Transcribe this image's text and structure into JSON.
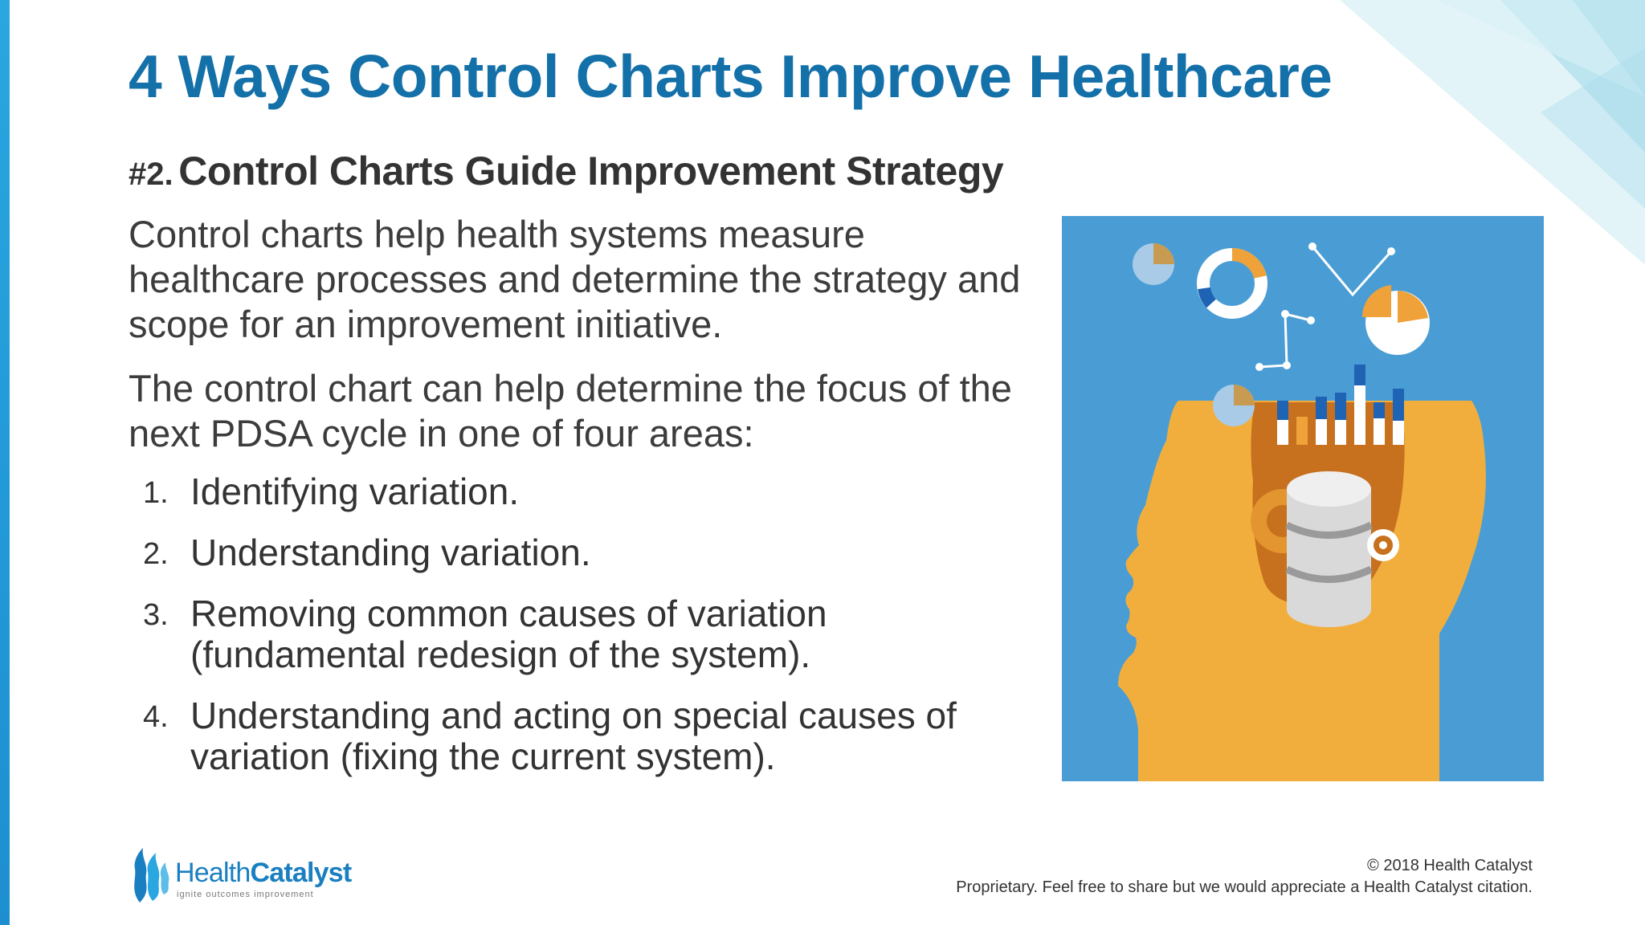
{
  "slide": {
    "title": "4 Ways Control Charts Improve Healthcare",
    "subtitle_number": "#2.",
    "subtitle_text": "Control Charts Guide Improvement Strategy",
    "paragraph_1": "Control charts help health systems measure healthcare processes and determine the strategy and scope for an improvement initiative.",
    "paragraph_2": "The control chart can help determine the focus of the next PDSA cycle in one of four areas:",
    "list": [
      {
        "number": "1.",
        "text": "Identifying variation."
      },
      {
        "number": "2.",
        "text": "Understanding variation."
      },
      {
        "number": "3.",
        "text": "Removing common causes of variation (fundamental redesign of the system)."
      },
      {
        "number": "4.",
        "text": "Understanding and acting on special causes of variation (fixing the current system)."
      }
    ]
  },
  "footer": {
    "logo_word_health": "Health",
    "logo_word_catalyst": "Catalyst",
    "logo_tagline": "ignite outcomes improvement",
    "copyright": "© 2018 Health Catalyst",
    "notice": "Proprietary. Feel free to share but we would appreciate a Health Catalyst citation."
  },
  "colors": {
    "title": "#1470a8",
    "accent_bar": "#2aa6e0",
    "illustration_bg": "#4a9dd4",
    "head": "#f2ae3d",
    "head_inner": "#c7701e",
    "bar_blue": "#1f63b5",
    "bar_orange": "#efa23a"
  },
  "icons": {
    "illustration": "head-with-data-icon",
    "logo": "flame-logo-icon"
  }
}
